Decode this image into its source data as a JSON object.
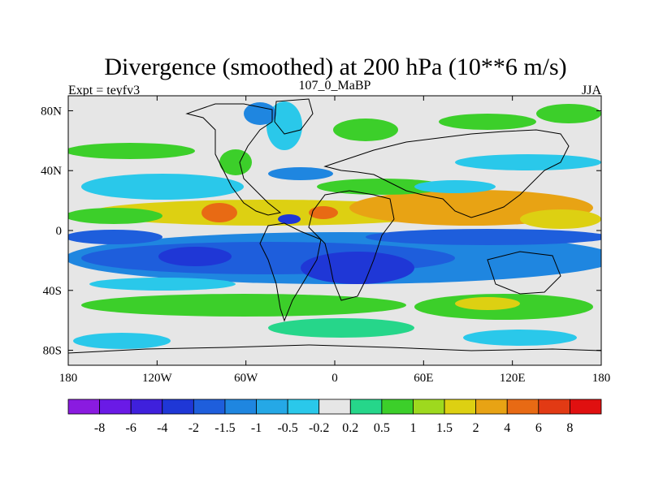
{
  "chart_data": {
    "type": "heatmap",
    "title": "Divergence (smoothed) at 200 hPa (10**6 m/s)",
    "left_label": "Expt = teyfv3",
    "center_label": "107_0_MaBP",
    "right_label": "JJA",
    "xlim": [
      -180,
      180
    ],
    "ylim": [
      -90,
      90
    ],
    "x_ticks": [
      {
        "value": -180,
        "label": "180"
      },
      {
        "value": -120,
        "label": "120W"
      },
      {
        "value": -60,
        "label": "60W"
      },
      {
        "value": 0,
        "label": "0"
      },
      {
        "value": 60,
        "label": "60E"
      },
      {
        "value": 120,
        "label": "120E"
      },
      {
        "value": 180,
        "label": "180"
      }
    ],
    "y_ticks": [
      {
        "value": 80,
        "label": "80N"
      },
      {
        "value": 40,
        "label": "40N"
      },
      {
        "value": 0,
        "label": "0"
      },
      {
        "value": -40,
        "label": "40S"
      },
      {
        "value": -80,
        "label": "80S"
      }
    ],
    "colorbar": {
      "levels": [
        "-8",
        "-6",
        "-4",
        "-2",
        "-1.5",
        "-1",
        "-0.5",
        "-0.2",
        "0.2",
        "0.5",
        "1",
        "1.5",
        "2",
        "4",
        "6",
        "8"
      ],
      "colors": [
        "#8a1be0",
        "#6a1ae6",
        "#3f20dc",
        "#1f37d6",
        "#1e5edc",
        "#1f86e0",
        "#25a8e6",
        "#2ac8ea",
        "#e6e6e6",
        "#26d68a",
        "#3ccf2a",
        "#9ed91e",
        "#ddd012",
        "#e8a314",
        "#e86a14",
        "#e23a14",
        "#e01010"
      ]
    }
  }
}
